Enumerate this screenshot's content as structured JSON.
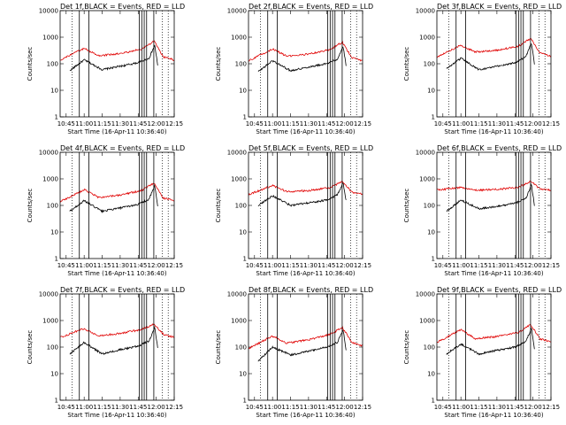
{
  "chart_data": [
    {
      "type": "line",
      "title": "Det 1f,BLACK = Events, RED = LLD",
      "xlabel": "Start Time (16-Apr-11 10:36:40)",
      "ylabel": "Counts/sec",
      "xlim": [
        "10:40",
        "12:15"
      ],
      "ylim": [
        1,
        10000
      ],
      "yscale": "log",
      "xticks": [
        "10:45",
        "11:00",
        "11:15",
        "11:30",
        "11:45",
        "12:00",
        "12:15"
      ],
      "yticks": [
        "1",
        "10",
        "100",
        "1000",
        "10000"
      ],
      "series": [
        {
          "name": "Events",
          "color": "#000000",
          "values": [
            [
              10.8,
              55
            ],
            [
              11.0,
              140
            ],
            [
              11.25,
              60
            ],
            [
              11.55,
              85
            ],
            [
              11.75,
              110
            ],
            [
              11.9,
              160
            ],
            [
              11.98,
              500
            ],
            [
              12.02,
              90
            ]
          ]
        },
        {
          "name": "LLD",
          "color": "#e00000",
          "values": [
            [
              10.67,
              140
            ],
            [
              11.0,
              380
            ],
            [
              11.2,
              200
            ],
            [
              11.5,
              240
            ],
            [
              11.8,
              360
            ],
            [
              11.97,
              700
            ],
            [
              12.1,
              180
            ],
            [
              12.25,
              140
            ]
          ]
        }
      ],
      "vlines_solid": [
        "10:56",
        "11:04",
        "11:46",
        "11:48",
        "11:50",
        "11:52",
        "11:58"
      ],
      "vlines_dotted": [
        "10:50",
        "12:05",
        "12:10"
      ]
    },
    {
      "type": "line",
      "title": "Det 2f,BLACK = Events, RED = LLD",
      "xlabel": "Start Time (16-Apr-11 10:36:40)",
      "ylabel": "Counts/sec",
      "xlim": [
        "10:40",
        "12:15"
      ],
      "ylim": [
        1,
        10000
      ],
      "yscale": "log",
      "xticks": [
        "10:45",
        "11:00",
        "11:15",
        "11:30",
        "11:45",
        "12:00",
        "12:15"
      ],
      "yticks": [
        "1",
        "10",
        "100",
        "1000",
        "10000"
      ],
      "series": [
        {
          "name": "Events",
          "color": "#000000",
          "values": [
            [
              10.8,
              50
            ],
            [
              11.0,
              130
            ],
            [
              11.25,
              55
            ],
            [
              11.55,
              80
            ],
            [
              11.75,
              100
            ],
            [
              11.9,
              150
            ],
            [
              11.98,
              450
            ],
            [
              12.02,
              85
            ]
          ]
        },
        {
          "name": "LLD",
          "color": "#e00000",
          "values": [
            [
              10.67,
              130
            ],
            [
              11.0,
              360
            ],
            [
              11.2,
              190
            ],
            [
              11.5,
              230
            ],
            [
              11.8,
              340
            ],
            [
              11.97,
              650
            ],
            [
              12.1,
              170
            ],
            [
              12.25,
              130
            ]
          ]
        }
      ],
      "vlines_solid": [
        "10:56",
        "11:04",
        "11:46",
        "11:48",
        "11:50",
        "11:52",
        "11:58"
      ],
      "vlines_dotted": [
        "10:50",
        "12:05",
        "12:10"
      ]
    },
    {
      "type": "line",
      "title": "Det 3f,BLACK = Events, RED = LLD",
      "xlabel": "Start Time (16-Apr-11 10:36:40)",
      "ylabel": "Counts/sec",
      "xlim": [
        "10:40",
        "12:15"
      ],
      "ylim": [
        1,
        10000
      ],
      "yscale": "log",
      "xticks": [
        "10:45",
        "11:00",
        "11:15",
        "11:30",
        "11:45",
        "12:00",
        "12:15"
      ],
      "yticks": [
        "1",
        "10",
        "100",
        "1000",
        "10000"
      ],
      "series": [
        {
          "name": "Events",
          "color": "#000000",
          "values": [
            [
              10.8,
              65
            ],
            [
              11.0,
              160
            ],
            [
              11.25,
              60
            ],
            [
              11.55,
              85
            ],
            [
              11.75,
              110
            ],
            [
              11.9,
              180
            ],
            [
              11.98,
              600
            ],
            [
              12.02,
              100
            ]
          ]
        },
        {
          "name": "LLD",
          "color": "#e00000",
          "values": [
            [
              10.67,
              180
            ],
            [
              11.0,
              500
            ],
            [
              11.2,
              280
            ],
            [
              11.5,
              320
            ],
            [
              11.8,
              460
            ],
            [
              11.97,
              900
            ],
            [
              12.1,
              250
            ],
            [
              12.25,
              190
            ]
          ]
        }
      ],
      "vlines_solid": [
        "10:56",
        "11:04",
        "11:46",
        "11:48",
        "11:50",
        "11:52",
        "11:58"
      ],
      "vlines_dotted": [
        "10:50",
        "12:05",
        "12:10"
      ]
    },
    {
      "type": "line",
      "title": "Det 4f,BLACK = Events, RED = LLD",
      "xlabel": "Start Time (16-Apr-11 10:36:40)",
      "ylabel": "Counts/sec",
      "xlim": [
        "10:40",
        "12:15"
      ],
      "ylim": [
        1,
        10000
      ],
      "yscale": "log",
      "xticks": [
        "10:45",
        "11:00",
        "11:15",
        "11:30",
        "11:45",
        "12:00",
        "12:15"
      ],
      "yticks": [
        "1",
        "10",
        "100",
        "1000",
        "10000"
      ],
      "series": [
        {
          "name": "Events",
          "color": "#000000",
          "values": [
            [
              10.8,
              60
            ],
            [
              11.0,
              150
            ],
            [
              11.25,
              60
            ],
            [
              11.55,
              85
            ],
            [
              11.75,
              110
            ],
            [
              11.9,
              170
            ],
            [
              11.98,
              550
            ],
            [
              12.02,
              95
            ]
          ]
        },
        {
          "name": "LLD",
          "color": "#e00000",
          "values": [
            [
              10.67,
              140
            ],
            [
              11.0,
              390
            ],
            [
              11.2,
              200
            ],
            [
              11.5,
              240
            ],
            [
              11.8,
              370
            ],
            [
              11.97,
              700
            ],
            [
              12.1,
              190
            ],
            [
              12.25,
              150
            ]
          ]
        }
      ],
      "vlines_solid": [
        "10:56",
        "11:04",
        "11:46",
        "11:48",
        "11:50",
        "11:52",
        "11:58"
      ],
      "vlines_dotted": [
        "10:50",
        "12:05",
        "12:10"
      ]
    },
    {
      "type": "line",
      "title": "Det 5f,BLACK = Events, RED = LLD",
      "xlabel": "Start Time (16-Apr-11 10:36:40)",
      "ylabel": "Counts/sec",
      "xlim": [
        "10:40",
        "12:15"
      ],
      "ylim": [
        1,
        10000
      ],
      "yscale": "log",
      "xticks": [
        "10:45",
        "11:00",
        "11:15",
        "11:30",
        "11:45",
        "12:00",
        "12:15"
      ],
      "yticks": [
        "1",
        "10",
        "100",
        "1000",
        "10000"
      ],
      "series": [
        {
          "name": "Events",
          "color": "#000000",
          "values": [
            [
              10.8,
              100
            ],
            [
              11.0,
              230
            ],
            [
              11.25,
              100
            ],
            [
              11.55,
              130
            ],
            [
              11.75,
              160
            ],
            [
              11.9,
              250
            ],
            [
              11.98,
              700
            ],
            [
              12.02,
              150
            ]
          ]
        },
        {
          "name": "LLD",
          "color": "#e00000",
          "values": [
            [
              10.67,
              260
            ],
            [
              11.0,
              560
            ],
            [
              11.2,
              330
            ],
            [
              11.5,
              360
            ],
            [
              11.8,
              470
            ],
            [
              11.97,
              800
            ],
            [
              12.1,
              320
            ],
            [
              12.25,
              260
            ]
          ]
        }
      ],
      "vlines_solid": [
        "10:56",
        "11:04",
        "11:46",
        "11:48",
        "11:50",
        "11:52",
        "11:58"
      ],
      "vlines_dotted": [
        "10:50",
        "12:05",
        "12:10"
      ]
    },
    {
      "type": "line",
      "title": "Det 6f,BLACK = Events, RED = LLD",
      "xlabel": "Start Time (16-Apr-11 10:36:40)",
      "ylabel": "Counts/sec",
      "xlim": [
        "10:40",
        "12:15"
      ],
      "ylim": [
        1,
        10000
      ],
      "yscale": "log",
      "xticks": [
        "10:45",
        "11:00",
        "11:15",
        "11:30",
        "11:45",
        "12:00",
        "12:15"
      ],
      "yticks": [
        "1",
        "10",
        "100",
        "1000",
        "10000"
      ],
      "series": [
        {
          "name": "Events",
          "color": "#000000",
          "values": [
            [
              10.8,
              60
            ],
            [
              11.0,
              160
            ],
            [
              11.25,
              75
            ],
            [
              11.55,
              95
            ],
            [
              11.75,
              120
            ],
            [
              11.9,
              180
            ],
            [
              11.98,
              600
            ],
            [
              12.02,
              100
            ]
          ]
        },
        {
          "name": "LLD",
          "color": "#e00000",
          "values": [
            [
              10.67,
              380
            ],
            [
              11.0,
              480
            ],
            [
              11.2,
              370
            ],
            [
              11.5,
              400
            ],
            [
              11.8,
              480
            ],
            [
              11.97,
              800
            ],
            [
              12.1,
              420
            ],
            [
              12.25,
              380
            ]
          ]
        }
      ],
      "vlines_solid": [
        "10:56",
        "11:04",
        "11:46",
        "11:48",
        "11:50",
        "11:52",
        "11:58"
      ],
      "vlines_dotted": [
        "10:50",
        "12:05",
        "12:10"
      ]
    },
    {
      "type": "line",
      "title": "Det 7f,BLACK = Events, RED = LLD",
      "xlabel": "Start Time (16-Apr-11 10:36:40)",
      "ylabel": "Counts/sec",
      "xlim": [
        "10:40",
        "12:15"
      ],
      "ylim": [
        1,
        10000
      ],
      "yscale": "log",
      "xticks": [
        "10:45",
        "11:00",
        "11:15",
        "11:30",
        "11:45",
        "12:00",
        "12:15"
      ],
      "yticks": [
        "1",
        "10",
        "100",
        "1000",
        "10000"
      ],
      "series": [
        {
          "name": "Events",
          "color": "#000000",
          "values": [
            [
              10.8,
              55
            ],
            [
              11.0,
              150
            ],
            [
              11.25,
              55
            ],
            [
              11.55,
              85
            ],
            [
              11.75,
              110
            ],
            [
              11.9,
              170
            ],
            [
              11.98,
              550
            ],
            [
              12.02,
              95
            ]
          ]
        },
        {
          "name": "LLD",
          "color": "#e00000",
          "values": [
            [
              10.67,
              230
            ],
            [
              11.0,
              500
            ],
            [
              11.2,
              260
            ],
            [
              11.5,
              330
            ],
            [
              11.8,
              460
            ],
            [
              11.97,
              750
            ],
            [
              12.1,
              300
            ],
            [
              12.25,
              230
            ]
          ]
        }
      ],
      "vlines_solid": [
        "10:56",
        "11:04",
        "11:46",
        "11:48",
        "11:50",
        "11:52",
        "11:58"
      ],
      "vlines_dotted": [
        "10:50",
        "12:05",
        "12:10"
      ]
    },
    {
      "type": "line",
      "title": "Det 8f,BLACK = Events, RED = LLD",
      "xlabel": "Start Time (16-Apr-11 10:36:40)",
      "ylabel": "Counts/sec",
      "xlim": [
        "10:40",
        "12:15"
      ],
      "ylim": [
        1,
        10000
      ],
      "yscale": "log",
      "xticks": [
        "10:45",
        "11:00",
        "11:15",
        "11:30",
        "11:45",
        "12:00",
        "12:15"
      ],
      "yticks": [
        "1",
        "10",
        "100",
        "1000",
        "10000"
      ],
      "series": [
        {
          "name": "Events",
          "color": "#000000",
          "values": [
            [
              10.8,
              30
            ],
            [
              11.0,
              100
            ],
            [
              11.25,
              50
            ],
            [
              11.55,
              75
            ],
            [
              11.75,
              100
            ],
            [
              11.9,
              150
            ],
            [
              11.98,
              450
            ],
            [
              12.02,
              80
            ]
          ]
        },
        {
          "name": "LLD",
          "color": "#e00000",
          "values": [
            [
              10.67,
              90
            ],
            [
              11.0,
              260
            ],
            [
              11.2,
              140
            ],
            [
              11.5,
              190
            ],
            [
              11.8,
              300
            ],
            [
              11.97,
              550
            ],
            [
              12.1,
              150
            ],
            [
              12.25,
              110
            ]
          ]
        }
      ],
      "vlines_solid": [
        "10:56",
        "11:04",
        "11:46",
        "11:48",
        "11:50",
        "11:52",
        "11:58"
      ],
      "vlines_dotted": [
        "10:50",
        "12:05",
        "12:10"
      ]
    },
    {
      "type": "line",
      "title": "Det 9f,BLACK = Events, RED = LLD",
      "xlabel": "Start Time (16-Apr-11 10:36:40)",
      "ylabel": "Counts/sec",
      "xlim": [
        "10:40",
        "12:15"
      ],
      "ylim": [
        1,
        10000
      ],
      "yscale": "log",
      "xticks": [
        "10:45",
        "11:00",
        "11:15",
        "11:30",
        "11:45",
        "12:00",
        "12:15"
      ],
      "yticks": [
        "1",
        "10",
        "100",
        "1000",
        "10000"
      ],
      "series": [
        {
          "name": "Events",
          "color": "#000000",
          "values": [
            [
              10.8,
              55
            ],
            [
              11.0,
              130
            ],
            [
              11.25,
              55
            ],
            [
              11.55,
              80
            ],
            [
              11.75,
              100
            ],
            [
              11.9,
              160
            ],
            [
              11.98,
              500
            ],
            [
              12.02,
              85
            ]
          ]
        },
        {
          "name": "LLD",
          "color": "#e00000",
          "values": [
            [
              10.67,
              150
            ],
            [
              11.0,
              450
            ],
            [
              11.2,
              210
            ],
            [
              11.5,
              250
            ],
            [
              11.8,
              360
            ],
            [
              11.97,
              700
            ],
            [
              12.1,
              200
            ],
            [
              12.25,
              160
            ]
          ]
        }
      ],
      "vlines_solid": [
        "10:56",
        "11:04",
        "11:46",
        "11:48",
        "11:50",
        "11:52",
        "11:58"
      ],
      "vlines_dotted": [
        "10:50",
        "12:05",
        "12:10"
      ]
    }
  ]
}
